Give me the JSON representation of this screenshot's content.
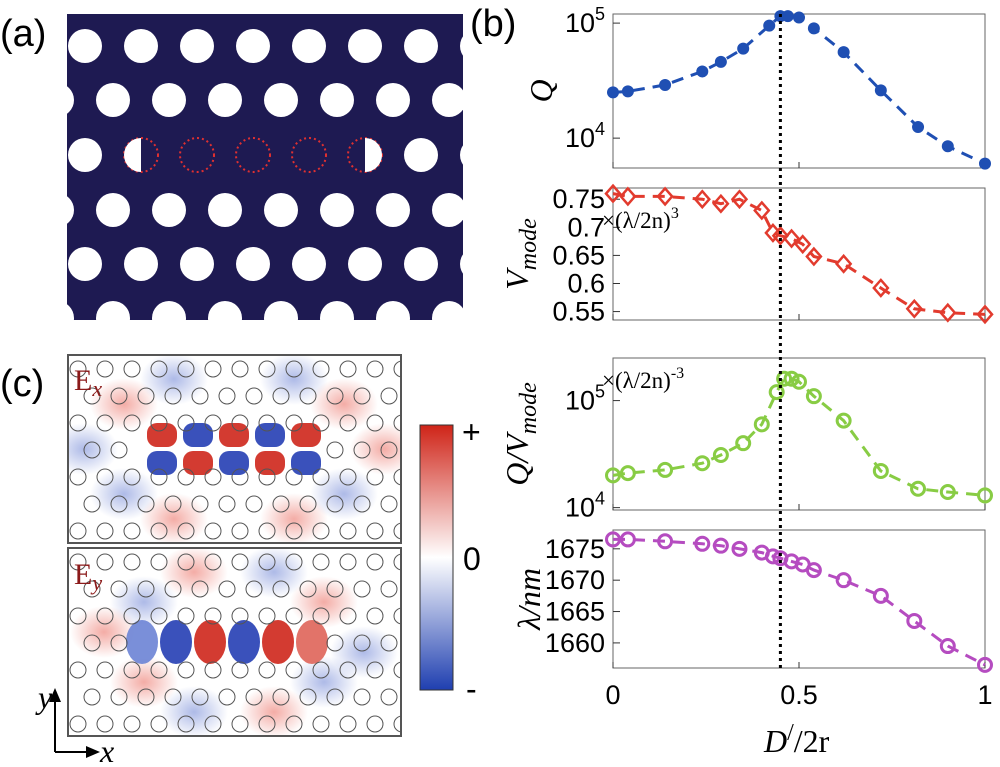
{
  "panel_labels": {
    "a": "(a)",
    "b": "(b)",
    "c": "(c)"
  },
  "field_labels": {
    "ex_main": "E",
    "ex_sub": "x",
    "ey_main": "E",
    "ey_sub": "y"
  },
  "colorbar": {
    "plus": "+",
    "zero": "0",
    "minus": "-"
  },
  "axes_arrows": {
    "y": "y",
    "x": "x"
  },
  "colors": {
    "navy": "#1e1a52",
    "blue": "#1f4fb3",
    "red": "#e23b2e",
    "green": "#88cc44",
    "magenta": "#b54cc0",
    "hole_outline_red": "#e03030"
  },
  "chart_data": [
    {
      "type": "scatter",
      "name": "Q",
      "ylabel": "Q",
      "yscale": "log",
      "ylim": [
        5500,
        120000
      ],
      "yticks": [
        {
          "v": 10000,
          "base": "10",
          "exp": "4"
        },
        {
          "v": 100000,
          "base": "10",
          "exp": "5"
        }
      ],
      "marker": "filled-circle",
      "x": [
        0,
        0.04,
        0.14,
        0.24,
        0.29,
        0.35,
        0.42,
        0.45,
        0.47,
        0.5,
        0.54,
        0.62,
        0.72,
        0.82,
        0.9,
        1.0
      ],
      "y": [
        25000,
        25500,
        29000,
        38000,
        46000,
        60000,
        95000,
        115000,
        115000,
        112000,
        90000,
        56000,
        26000,
        12500,
        8500,
        6000
      ]
    },
    {
      "type": "scatter",
      "name": "V_mode",
      "ylabel_main": "V",
      "ylabel_sub": "mode",
      "unit": "×(λ/2n)",
      "unit_exp": "3",
      "ylim": [
        0.535,
        0.77
      ],
      "yticks": [
        "0.55",
        "0.6",
        "0.65",
        "0.7",
        "0.75"
      ],
      "marker": "open-diamond",
      "x": [
        0,
        0.04,
        0.14,
        0.24,
        0.29,
        0.34,
        0.4,
        0.43,
        0.45,
        0.48,
        0.51,
        0.54,
        0.62,
        0.72,
        0.81,
        0.9,
        1.0
      ],
      "y": [
        0.76,
        0.755,
        0.755,
        0.75,
        0.742,
        0.75,
        0.73,
        0.69,
        0.685,
        0.68,
        0.67,
        0.648,
        0.635,
        0.592,
        0.555,
        0.548,
        0.545
      ]
    },
    {
      "type": "scatter",
      "name": "Q/V_mode",
      "ylabel_main": "Q/V",
      "ylabel_sub": "mode",
      "unit": "×(λ/2n)",
      "unit_exp": "-3",
      "yscale": "log",
      "ylim": [
        9500,
        250000
      ],
      "yticks": [
        {
          "v": 10000,
          "base": "10",
          "exp": "4"
        },
        {
          "v": 100000,
          "base": "10",
          "exp": "5"
        }
      ],
      "marker": "open-circle",
      "x": [
        0,
        0.04,
        0.14,
        0.24,
        0.29,
        0.35,
        0.4,
        0.44,
        0.46,
        0.48,
        0.5,
        0.54,
        0.62,
        0.72,
        0.82,
        0.9,
        1.0
      ],
      "y": [
        20000,
        21000,
        22500,
        26000,
        31000,
        40000,
        60000,
        120000,
        160000,
        160000,
        150000,
        110000,
        65000,
        22000,
        15000,
        14000,
        13000
      ]
    },
    {
      "type": "scatter",
      "name": "wavelength",
      "ylabel": "λ/nm",
      "ylim": [
        1656,
        1678
      ],
      "yticks": [
        "1660",
        "1665",
        "1670",
        "1675"
      ],
      "marker": "open-circle",
      "x": [
        0,
        0.04,
        0.14,
        0.24,
        0.29,
        0.34,
        0.4,
        0.43,
        0.45,
        0.48,
        0.51,
        0.54,
        0.62,
        0.72,
        0.81,
        0.9,
        1.0
      ],
      "y": [
        1676.5,
        1676.5,
        1676.2,
        1675.8,
        1675.5,
        1675.0,
        1674.4,
        1673.8,
        1673.5,
        1673.0,
        1672.5,
        1671.6,
        1670.0,
        1667.5,
        1663.5,
        1659.5,
        1656.5
      ]
    }
  ],
  "x_axis": {
    "label_main": "D",
    "label_prime": "/",
    "label_rest": "/2r",
    "ticks": [
      "0",
      "0.5",
      "1"
    ],
    "xlim": [
      0,
      1
    ],
    "marker_line_x": 0.45
  }
}
